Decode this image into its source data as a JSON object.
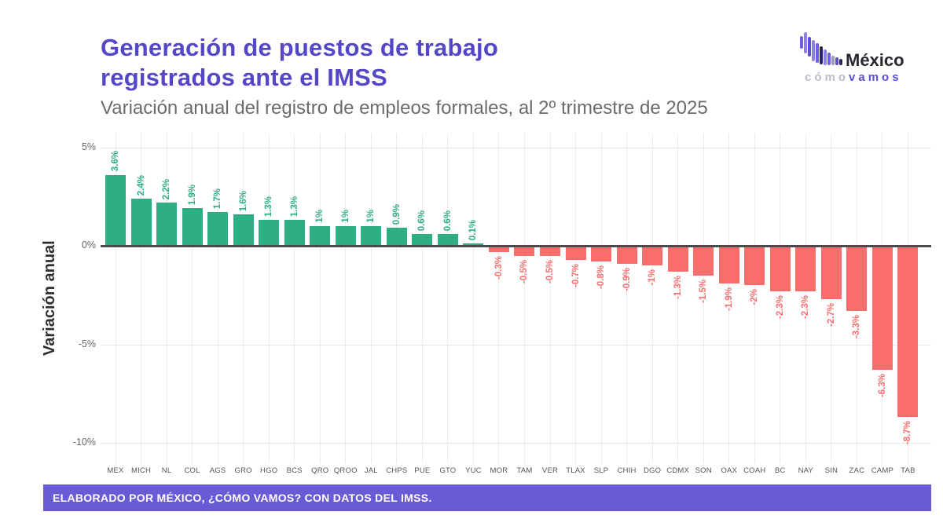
{
  "header": {
    "title_line1": "Generación de puestos de trabajo",
    "title_line2": "registrados ante el IMSS",
    "subtitle": "Variación anual del registro de empleos formales, al 2º trimestre de 2025"
  },
  "logo": {
    "name": "México ¿Cómo Vamos?",
    "text_mexico": "México",
    "text_como": "cómo",
    "text_vamos": "vamos"
  },
  "chart_data": {
    "type": "bar",
    "title": "Generación de puestos de trabajo registrados ante el IMSS",
    "xlabel": "",
    "ylabel": "Variación anual",
    "ylim": [
      -10.5,
      5.5
    ],
    "grid": true,
    "legend": false,
    "positive_color": "#2eae83",
    "negative_color": "#f96d6d",
    "categories": [
      "MEX",
      "MICH",
      "NL",
      "COL",
      "AGS",
      "GRO",
      "HGO",
      "BCS",
      "QRO",
      "QROO",
      "JAL",
      "CHPS",
      "PUE",
      "GTO",
      "YUC",
      "MOR",
      "TAM",
      "VER",
      "TLAX",
      "SLP",
      "CHIH",
      "DGO",
      "CDMX",
      "SON",
      "OAX",
      "COAH",
      "BC",
      "NAY",
      "SIN",
      "ZAC",
      "CAMP",
      "TAB"
    ],
    "values": [
      3.6,
      2.4,
      2.2,
      1.9,
      1.7,
      1.6,
      1.3,
      1.3,
      1,
      1,
      1,
      0.9,
      0.6,
      0.6,
      0.1,
      -0.3,
      -0.5,
      -0.5,
      -0.7,
      -0.8,
      -0.9,
      -1,
      -1.3,
      -1.5,
      -1.9,
      -2,
      -2.3,
      -2.3,
      -2.7,
      -3.3,
      -6.3,
      -8.7
    ],
    "labels": [
      "3.6%",
      "2.4%",
      "2.2%",
      "1.9%",
      "1.7%",
      "1.6%",
      "1.3%",
      "1.3%",
      "1%",
      "1%",
      "1%",
      "0.9%",
      "0.6%",
      "0.6%",
      "0.1%",
      "-0.3%",
      "-0.5%",
      "-0.5%",
      "-0.7%",
      "-0.8%",
      "-0.9%",
      "-1%",
      "-1.3%",
      "-1.5%",
      "-1.9%",
      "-2%",
      "-2.3%",
      "-2.3%",
      "-2.7%",
      "-3.3%",
      "-6.3%",
      "-8.7%"
    ],
    "yticks": [
      {
        "label": "5%",
        "value": 5
      },
      {
        "label": "0%",
        "value": 0
      },
      {
        "label": "-5%",
        "value": -5
      },
      {
        "label": "-10%",
        "value": -10
      }
    ]
  },
  "footer": {
    "text": "ELABORADO POR MÉXICO, ¿CÓMO VAMOS? CON DATOS DEL IMSS."
  }
}
